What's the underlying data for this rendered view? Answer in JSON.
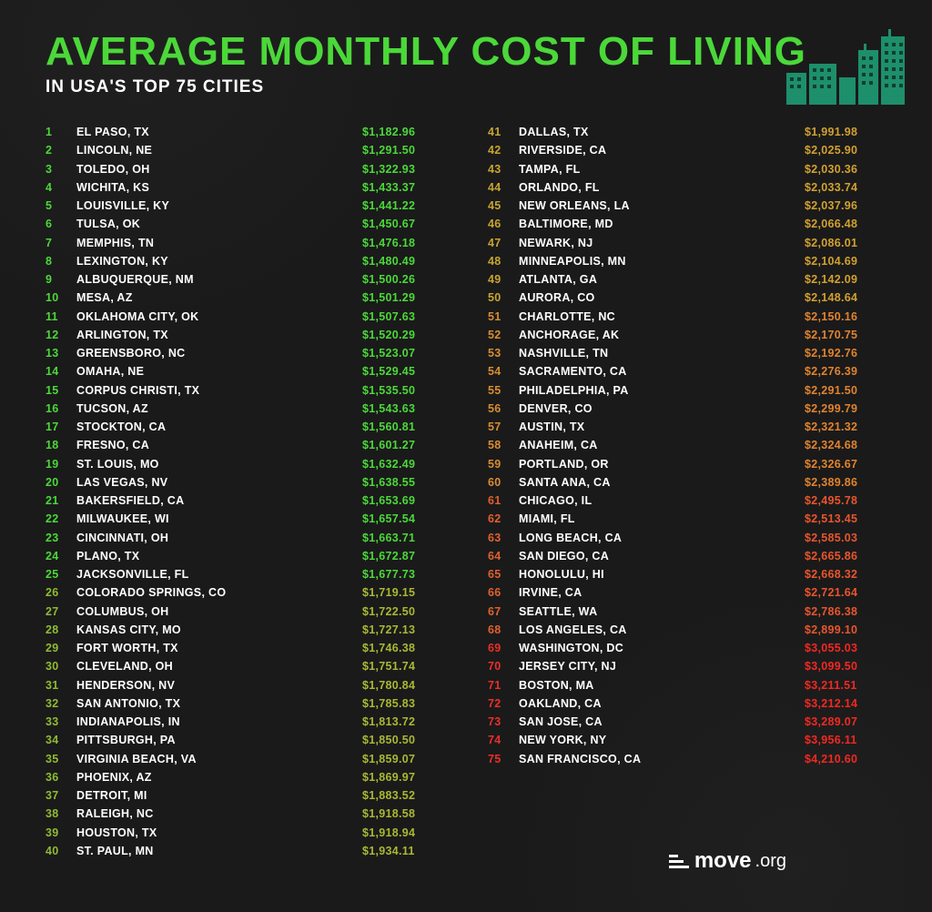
{
  "title": "AVERAGE MONTHLY COST OF LIVING",
  "subtitle": "IN USA'S TOP 75 CITIES",
  "title_color": "#4bd839",
  "building_color": "#1d8f6a",
  "logo_text": "move",
  "logo_suffix": ".org",
  "color_stops": [
    {
      "until": 25,
      "rank_color": "#4bd839",
      "cost_color": "#4bd839"
    },
    {
      "until": 40,
      "rank_color": "#8fbb33",
      "cost_color": "#a9b833"
    },
    {
      "until": 50,
      "rank_color": "#c7a531",
      "cost_color": "#d1a030"
    },
    {
      "until": 60,
      "rank_color": "#d88c31",
      "cost_color": "#e0832f"
    },
    {
      "until": 68,
      "rank_color": "#e0602f",
      "cost_color": "#e8552d"
    },
    {
      "until": 75,
      "rank_color": "#ea2f2a",
      "cost_color": "#f22821"
    }
  ],
  "cities": [
    {
      "rank": 1,
      "name": "EL PASO, TX",
      "cost": "$1,182.96"
    },
    {
      "rank": 2,
      "name": "LINCOLN, NE",
      "cost": "$1,291.50"
    },
    {
      "rank": 3,
      "name": "TOLEDO, OH",
      "cost": "$1,322.93"
    },
    {
      "rank": 4,
      "name": "WICHITA, KS",
      "cost": "$1,433.37"
    },
    {
      "rank": 5,
      "name": "LOUISVILLE, KY",
      "cost": "$1,441.22"
    },
    {
      "rank": 6,
      "name": "TULSA, OK",
      "cost": "$1,450.67"
    },
    {
      "rank": 7,
      "name": "MEMPHIS, TN",
      "cost": "$1,476.18"
    },
    {
      "rank": 8,
      "name": "LEXINGTON, KY",
      "cost": "$1,480.49"
    },
    {
      "rank": 9,
      "name": "ALBUQUERQUE, NM",
      "cost": "$1,500.26"
    },
    {
      "rank": 10,
      "name": "MESA, AZ",
      "cost": "$1,501.29"
    },
    {
      "rank": 11,
      "name": "OKLAHOMA CITY, OK",
      "cost": "$1,507.63"
    },
    {
      "rank": 12,
      "name": "ARLINGTON, TX",
      "cost": "$1,520.29"
    },
    {
      "rank": 13,
      "name": "GREENSBORO, NC",
      "cost": "$1,523.07"
    },
    {
      "rank": 14,
      "name": "OMAHA, NE",
      "cost": "$1,529.45"
    },
    {
      "rank": 15,
      "name": "CORPUS CHRISTI, TX",
      "cost": "$1,535.50"
    },
    {
      "rank": 16,
      "name": "TUCSON, AZ",
      "cost": "$1,543.63"
    },
    {
      "rank": 17,
      "name": "STOCKTON, CA",
      "cost": "$1,560.81"
    },
    {
      "rank": 18,
      "name": "FRESNO, CA",
      "cost": "$1,601.27"
    },
    {
      "rank": 19,
      "name": "ST. LOUIS, MO",
      "cost": "$1,632.49"
    },
    {
      "rank": 20,
      "name": "LAS VEGAS, NV",
      "cost": "$1,638.55"
    },
    {
      "rank": 21,
      "name": "BAKERSFIELD, CA",
      "cost": "$1,653.69"
    },
    {
      "rank": 22,
      "name": "MILWAUKEE, WI",
      "cost": "$1,657.54"
    },
    {
      "rank": 23,
      "name": "CINCINNATI, OH",
      "cost": "$1,663.71"
    },
    {
      "rank": 24,
      "name": "PLANO, TX",
      "cost": "$1,672.87"
    },
    {
      "rank": 25,
      "name": "JACKSONVILLE, FL",
      "cost": "$1,677.73"
    },
    {
      "rank": 26,
      "name": "COLORADO SPRINGS, CO",
      "cost": "$1,719.15"
    },
    {
      "rank": 27,
      "name": "COLUMBUS, OH",
      "cost": "$1,722.50"
    },
    {
      "rank": 28,
      "name": "KANSAS CITY, MO",
      "cost": "$1,727.13"
    },
    {
      "rank": 29,
      "name": "FORT WORTH, TX",
      "cost": "$1,746.38"
    },
    {
      "rank": 30,
      "name": "CLEVELAND, OH",
      "cost": "$1,751.74"
    },
    {
      "rank": 31,
      "name": "HENDERSON, NV",
      "cost": "$1,780.84"
    },
    {
      "rank": 32,
      "name": "SAN ANTONIO, TX",
      "cost": "$1,785.83"
    },
    {
      "rank": 33,
      "name": "INDIANAPOLIS, IN",
      "cost": "$1,813.72"
    },
    {
      "rank": 34,
      "name": "PITTSBURGH, PA",
      "cost": "$1,850.50"
    },
    {
      "rank": 35,
      "name": "VIRGINIA BEACH, VA",
      "cost": "$1,859.07"
    },
    {
      "rank": 36,
      "name": "PHOENIX, AZ",
      "cost": "$1,869.97"
    },
    {
      "rank": 37,
      "name": "DETROIT, MI",
      "cost": "$1,883.52"
    },
    {
      "rank": 38,
      "name": "RALEIGH, NC",
      "cost": "$1,918.58"
    },
    {
      "rank": 39,
      "name": "HOUSTON, TX",
      "cost": "$1,918.94"
    },
    {
      "rank": 40,
      "name": "ST. PAUL, MN",
      "cost": "$1,934.11"
    },
    {
      "rank": 41,
      "name": "DALLAS, TX",
      "cost": "$1,991.98"
    },
    {
      "rank": 42,
      "name": "RIVERSIDE, CA",
      "cost": "$2,025.90"
    },
    {
      "rank": 43,
      "name": "TAMPA, FL",
      "cost": "$2,030.36"
    },
    {
      "rank": 44,
      "name": "ORLANDO, FL",
      "cost": "$2,033.74"
    },
    {
      "rank": 45,
      "name": "NEW ORLEANS, LA",
      "cost": "$2,037.96"
    },
    {
      "rank": 46,
      "name": "BALTIMORE, MD",
      "cost": "$2,066.48"
    },
    {
      "rank": 47,
      "name": "NEWARK, NJ",
      "cost": "$2,086.01"
    },
    {
      "rank": 48,
      "name": "MINNEAPOLIS, MN",
      "cost": "$2,104.69"
    },
    {
      "rank": 49,
      "name": "ATLANTA, GA",
      "cost": "$2,142.09"
    },
    {
      "rank": 50,
      "name": "AURORA, CO",
      "cost": "$2,148.64"
    },
    {
      "rank": 51,
      "name": "CHARLOTTE, NC",
      "cost": "$2,150.16"
    },
    {
      "rank": 52,
      "name": "ANCHORAGE, AK",
      "cost": "$2,170.75"
    },
    {
      "rank": 53,
      "name": "NASHVILLE, TN",
      "cost": "$2,192.76"
    },
    {
      "rank": 54,
      "name": "SACRAMENTO, CA",
      "cost": "$2,276.39"
    },
    {
      "rank": 55,
      "name": "PHILADELPHIA, PA",
      "cost": "$2,291.50"
    },
    {
      "rank": 56,
      "name": "DENVER, CO",
      "cost": "$2,299.79"
    },
    {
      "rank": 57,
      "name": "AUSTIN, TX",
      "cost": "$2,321.32"
    },
    {
      "rank": 58,
      "name": "ANAHEIM, CA",
      "cost": "$2,324.68"
    },
    {
      "rank": 59,
      "name": "PORTLAND, OR",
      "cost": "$2,326.67"
    },
    {
      "rank": 60,
      "name": "SANTA ANA, CA",
      "cost": "$2,389.86"
    },
    {
      "rank": 61,
      "name": "CHICAGO, IL",
      "cost": "$2,495.78"
    },
    {
      "rank": 62,
      "name": "MIAMI, FL",
      "cost": "$2,513.45"
    },
    {
      "rank": 63,
      "name": "LONG BEACH, CA",
      "cost": "$2,585.03"
    },
    {
      "rank": 64,
      "name": "SAN DIEGO, CA",
      "cost": "$2,665.86"
    },
    {
      "rank": 65,
      "name": "HONOLULU, HI",
      "cost": "$2,668.32"
    },
    {
      "rank": 66,
      "name": "IRVINE, CA",
      "cost": "$2,721.64"
    },
    {
      "rank": 67,
      "name": "SEATTLE, WA",
      "cost": "$2,786.38"
    },
    {
      "rank": 68,
      "name": "LOS ANGELES, CA",
      "cost": "$2,899.10"
    },
    {
      "rank": 69,
      "name": "WASHINGTON, DC",
      "cost": "$3,055.03"
    },
    {
      "rank": 70,
      "name": "JERSEY CITY, NJ",
      "cost": "$3,099.50"
    },
    {
      "rank": 71,
      "name": "BOSTON, MA",
      "cost": "$3,211.51"
    },
    {
      "rank": 72,
      "name": "OAKLAND, CA",
      "cost": "$3,212.14"
    },
    {
      "rank": 73,
      "name": "SAN JOSE, CA",
      "cost": "$3,289.07"
    },
    {
      "rank": 74,
      "name": "NEW YORK, NY",
      "cost": "$3,956.11"
    },
    {
      "rank": 75,
      "name": "SAN FRANCISCO, CA",
      "cost": "$4,210.60"
    }
  ]
}
